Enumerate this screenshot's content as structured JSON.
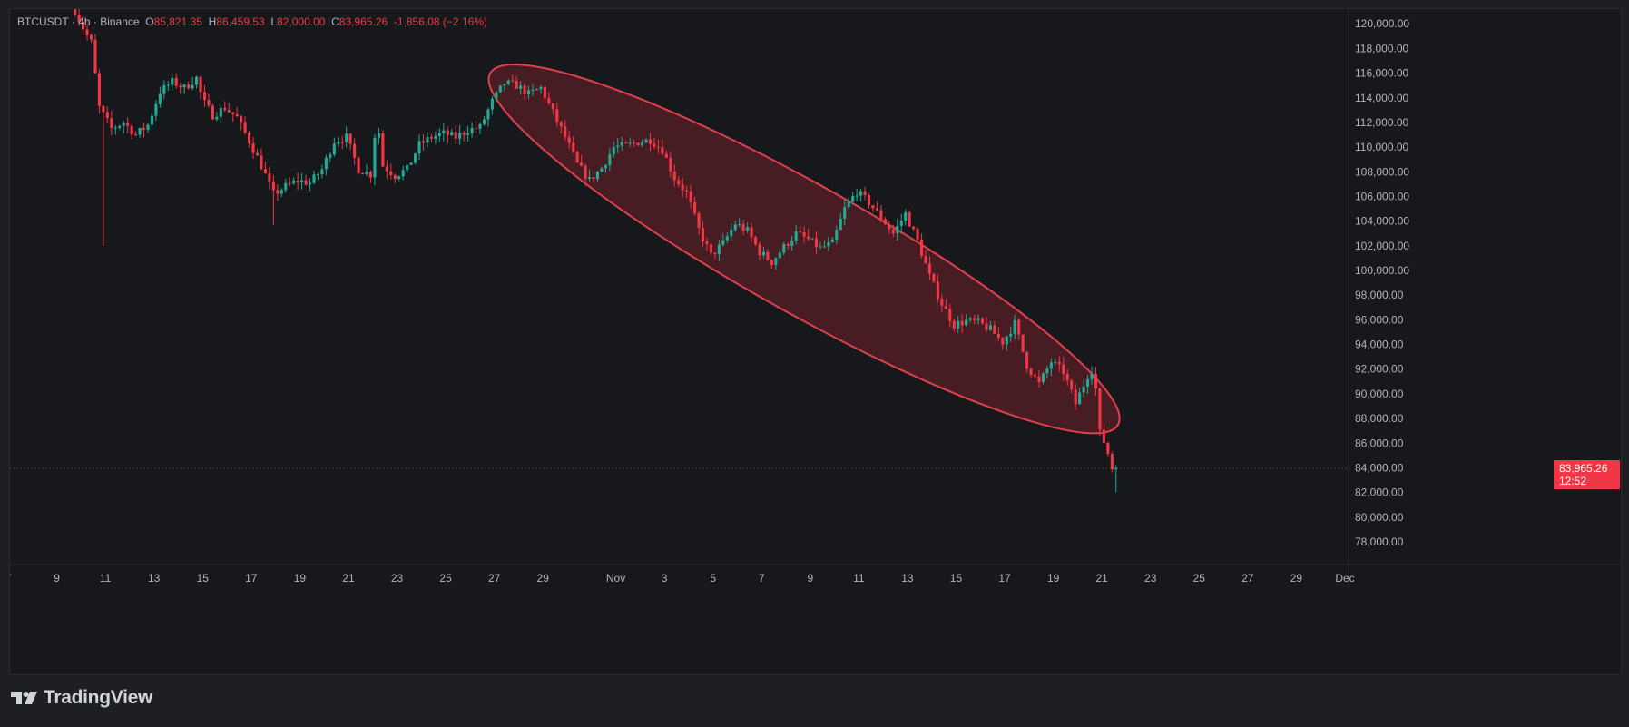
{
  "legend": {
    "symbol": "BTCUSDT",
    "sep1": "·",
    "interval": "4h",
    "sep2": "·",
    "exchange": "Binance",
    "open_label": "O",
    "open": "85,821.35",
    "high_label": "H",
    "high": "86,459.53",
    "low_label": "L",
    "low": "82,000.00",
    "close_label": "C",
    "close": "83,965.26",
    "change": "-1,856.08 (−2.16%)"
  },
  "price_tag": {
    "price": "83,965.26",
    "countdown": "12:52"
  },
  "footer": {
    "brand": "TradingView"
  },
  "colors": {
    "up": "#22ab94",
    "down": "#f23645",
    "background": "#17181c",
    "ellipse_fill": "#5c1f27",
    "ellipse_stroke": "#e0404e",
    "axis_text": "#b2b5be"
  },
  "chart_data": {
    "type": "candlestick",
    "interval": "4h",
    "y_tick_labels": [
      "78,000.00",
      "80,000.00",
      "82,000.00",
      "84,000.00",
      "86,000.00",
      "88,000.00",
      "90,000.00",
      "92,000.00",
      "94,000.00",
      "96,000.00",
      "98,000.00",
      "100,000.00",
      "102,000.00",
      "104,000.00",
      "106,000.00",
      "108,000.00",
      "110,000.00",
      "112,000.00",
      "114,000.00",
      "116,000.00",
      "118,000.00",
      "120,000.00"
    ],
    "x_tick_labels": [
      "7",
      "9",
      "11",
      "13",
      "15",
      "17",
      "19",
      "21",
      "23",
      "25",
      "27",
      "29",
      "Nov",
      "3",
      "5",
      "7",
      "9",
      "11",
      "13",
      "15",
      "17",
      "19",
      "21",
      "23",
      "25",
      "27",
      "29",
      "Dec"
    ],
    "x_range": [
      "2025-10-07",
      "2025-12-01"
    ],
    "ylim": [
      76600,
      120900
    ],
    "last_price": 83965.26,
    "annotation": "ellipse highlighting the decline from late October to November 20",
    "path": [
      [
        "2025-10-09T16:00",
        121800
      ],
      [
        "2025-10-10T06:00",
        119300
      ],
      [
        "2025-10-10T12:00",
        118500
      ],
      [
        "2025-10-10T20:00",
        113200
      ],
      [
        "2025-10-11T08:00",
        111500
      ],
      [
        "2025-10-11T20:00",
        112000
      ],
      [
        "2025-10-12T08:00",
        111000
      ],
      [
        "2025-10-12T20:00",
        111800
      ],
      [
        "2025-10-13T08:00",
        114500
      ],
      [
        "2025-10-13T20:00",
        115300
      ],
      [
        "2025-10-14T08:00",
        114800
      ],
      [
        "2025-10-14T20:00",
        115600
      ],
      [
        "2025-10-15T02:00",
        113800
      ],
      [
        "2025-10-15T12:00",
        112600
      ],
      [
        "2025-10-16T00:00",
        113200
      ],
      [
        "2025-10-16T12:00",
        112400
      ],
      [
        "2025-10-17T00:00",
        110500
      ],
      [
        "2025-10-17T12:00",
        108500
      ],
      [
        "2025-10-18T00:00",
        106200
      ],
      [
        "2025-10-18T12:00",
        106800
      ],
      [
        "2025-10-19T00:00",
        107300
      ],
      [
        "2025-10-19T12:00",
        107100
      ],
      [
        "2025-10-20T00:00",
        108200
      ],
      [
        "2025-10-20T12:00",
        110500
      ],
      [
        "2025-10-21T00:00",
        110800
      ],
      [
        "2025-10-21T12:00",
        108200
      ],
      [
        "2025-10-22T00:00",
        107800
      ],
      [
        "2025-10-22T06:00",
        112500
      ],
      [
        "2025-10-22T12:00",
        108500
      ],
      [
        "2025-10-23T00:00",
        107700
      ],
      [
        "2025-10-23T12:00",
        108200
      ],
      [
        "2025-10-24T00:00",
        110200
      ],
      [
        "2025-10-24T12:00",
        110800
      ],
      [
        "2025-10-25T00:00",
        111100
      ],
      [
        "2025-10-25T12:00",
        110800
      ],
      [
        "2025-10-26T00:00",
        111400
      ],
      [
        "2025-10-26T12:00",
        111600
      ],
      [
        "2025-10-27T00:00",
        113700
      ],
      [
        "2025-10-27T12:00",
        115200
      ],
      [
        "2025-10-28T00:00",
        115000
      ],
      [
        "2025-10-28T12:00",
        114300
      ],
      [
        "2025-10-29T00:00",
        114800
      ],
      [
        "2025-10-29T12:00",
        112800
      ],
      [
        "2025-10-30T00:00",
        110800
      ],
      [
        "2025-10-30T12:00",
        108600
      ],
      [
        "2025-10-31T00:00",
        107300
      ],
      [
        "2025-10-31T12:00",
        108300
      ],
      [
        "2025-11-01T00:00",
        110000
      ],
      [
        "2025-11-01T12:00",
        110100
      ],
      [
        "2025-11-02T00:00",
        110400
      ],
      [
        "2025-11-02T12:00",
        110600
      ],
      [
        "2025-11-03T00:00",
        109800
      ],
      [
        "2025-11-03T12:00",
        107500
      ],
      [
        "2025-11-04T00:00",
        106300
      ],
      [
        "2025-11-04T12:00",
        103300
      ],
      [
        "2025-11-05T00:00",
        101200
      ],
      [
        "2025-11-05T12:00",
        102200
      ],
      [
        "2025-11-06T00:00",
        103800
      ],
      [
        "2025-11-06T12:00",
        103200
      ],
      [
        "2025-11-07T00:00",
        101500
      ],
      [
        "2025-11-07T12:00",
        100700
      ],
      [
        "2025-11-08T00:00",
        101900
      ],
      [
        "2025-11-08T12:00",
        103000
      ],
      [
        "2025-11-09T00:00",
        102500
      ],
      [
        "2025-11-09T12:00",
        101800
      ],
      [
        "2025-11-10T00:00",
        102200
      ],
      [
        "2025-11-10T12:00",
        105000
      ],
      [
        "2025-11-11T00:00",
        106400
      ],
      [
        "2025-11-11T12:00",
        105500
      ],
      [
        "2025-11-12T00:00",
        104300
      ],
      [
        "2025-11-12T12:00",
        103000
      ],
      [
        "2025-11-13T00:00",
        104600
      ],
      [
        "2025-11-13T12:00",
        102400
      ],
      [
        "2025-11-14T00:00",
        99500
      ],
      [
        "2025-11-14T12:00",
        97300
      ],
      [
        "2025-11-15T00:00",
        95600
      ],
      [
        "2025-11-15T12:00",
        95900
      ],
      [
        "2025-11-16T00:00",
        95800
      ],
      [
        "2025-11-16T12:00",
        95200
      ],
      [
        "2025-11-17T00:00",
        94200
      ],
      [
        "2025-11-17T12:00",
        95700
      ],
      [
        "2025-11-18T00:00",
        92300
      ],
      [
        "2025-11-18T12:00",
        90800
      ],
      [
        "2025-11-19T00:00",
        92600
      ],
      [
        "2025-11-19T12:00",
        91800
      ],
      [
        "2025-11-20T00:00",
        89200
      ],
      [
        "2025-11-20T12:00",
        91500
      ],
      [
        "2025-11-20T18:00",
        92200
      ],
      [
        "2025-11-21T00:00",
        86800
      ],
      [
        "2025-11-21T06:00",
        85800
      ],
      [
        "2025-11-21T12:00",
        83965
      ]
    ]
  }
}
